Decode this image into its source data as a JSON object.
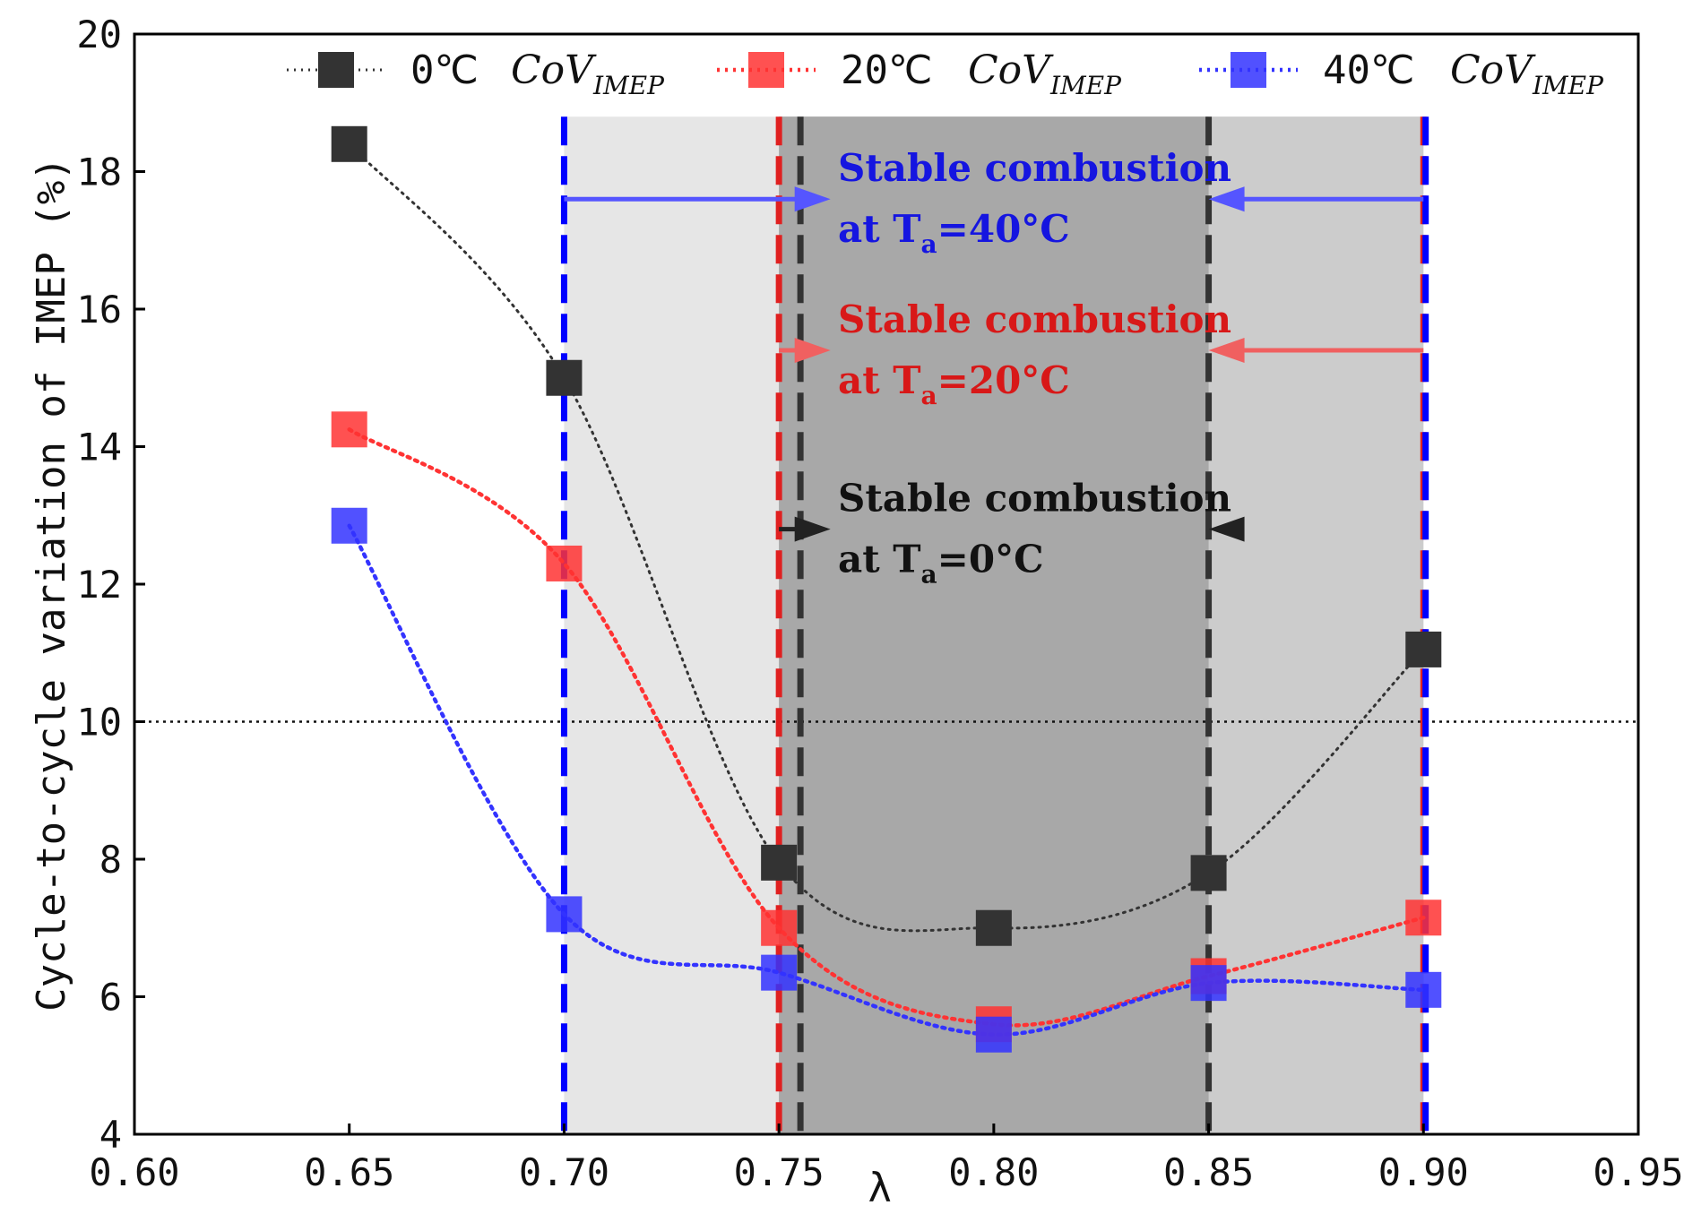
{
  "chart_data": {
    "type": "line",
    "xlabel": "λ",
    "ylabel": "Cycle-to-cycle variation of IMEP (%)",
    "xlim": [
      0.6,
      0.95
    ],
    "ylim": [
      4,
      20
    ],
    "x_ticks": [
      "0.60",
      "0.65",
      "0.70",
      "0.75",
      "0.80",
      "0.85",
      "0.90",
      "0.95"
    ],
    "y_ticks": [
      "4",
      "6",
      "8",
      "10",
      "12",
      "14",
      "16",
      "18",
      "20"
    ],
    "x": [
      0.65,
      0.7,
      0.75,
      0.8,
      0.85,
      0.9
    ],
    "series": [
      {
        "name": "0℃",
        "legend_main": "0℃",
        "legend_cov": "CoV",
        "legend_sub": "IMEP",
        "color": "#333333",
        "values": [
          18.4,
          15.0,
          7.95,
          7.0,
          7.8,
          11.05
        ]
      },
      {
        "name": "20℃",
        "legend_main": "20℃",
        "legend_cov": "CoV",
        "legend_sub": "IMEP",
        "color": "#ff3333",
        "values": [
          14.25,
          12.3,
          7.0,
          5.6,
          6.3,
          7.15
        ]
      },
      {
        "name": "40℃",
        "legend_main": "40℃",
        "legend_cov": "CoV",
        "legend_sub": "IMEP",
        "color": "#3333ff",
        "values": [
          12.85,
          7.2,
          6.35,
          5.45,
          6.2,
          6.1
        ]
      }
    ],
    "threshold_line": 10,
    "regions": [
      {
        "name": "stable-40C",
        "x": [
          0.7,
          0.9
        ],
        "fill": "#e6e6e6"
      },
      {
        "name": "stable-20C",
        "x": [
          0.75,
          0.9
        ],
        "fill": "#cccccc"
      },
      {
        "name": "stable-0C",
        "x": [
          0.75,
          0.85
        ],
        "fill": "#a8a8a8"
      }
    ],
    "vertical_lines": [
      {
        "x": 0.7,
        "color": "#0000ff"
      },
      {
        "x": 0.75,
        "color": "#e02020"
      },
      {
        "x": 0.755,
        "color": "#333333"
      },
      {
        "x": 0.85,
        "color": "#333333"
      },
      {
        "x": 0.9,
        "color": "#e02020"
      },
      {
        "x": 0.9005,
        "color": "#0000ff"
      }
    ],
    "annotations": [
      {
        "line1": "Stable combustion",
        "line2_prefix": "at T",
        "line2_sub": "a",
        "line2_suffix": "=40°C",
        "color": "#1515e0",
        "y": 17.6,
        "arrow_from": [
          0.7,
          0.762
        ],
        "arrow_to": [
          0.9,
          0.85
        ],
        "arrow_color": "#5555ff"
      },
      {
        "line1": "Stable combustion",
        "line2_prefix": "at T",
        "line2_sub": "a",
        "line2_suffix": "=20°C",
        "color": "#d81818",
        "y": 15.4,
        "arrow_from": [
          0.75,
          0.762
        ],
        "arrow_to": [
          0.9,
          0.85
        ],
        "arrow_color": "#f06060"
      },
      {
        "line1": "Stable combustion",
        "line2_prefix": "at T",
        "line2_sub": "a",
        "line2_suffix": "=0°C",
        "color": "#111111",
        "y": 12.8,
        "arrow_from": [
          0.75,
          0.762
        ],
        "arrow_to": [
          0.855,
          0.85
        ],
        "arrow_color": "#222222"
      }
    ]
  }
}
